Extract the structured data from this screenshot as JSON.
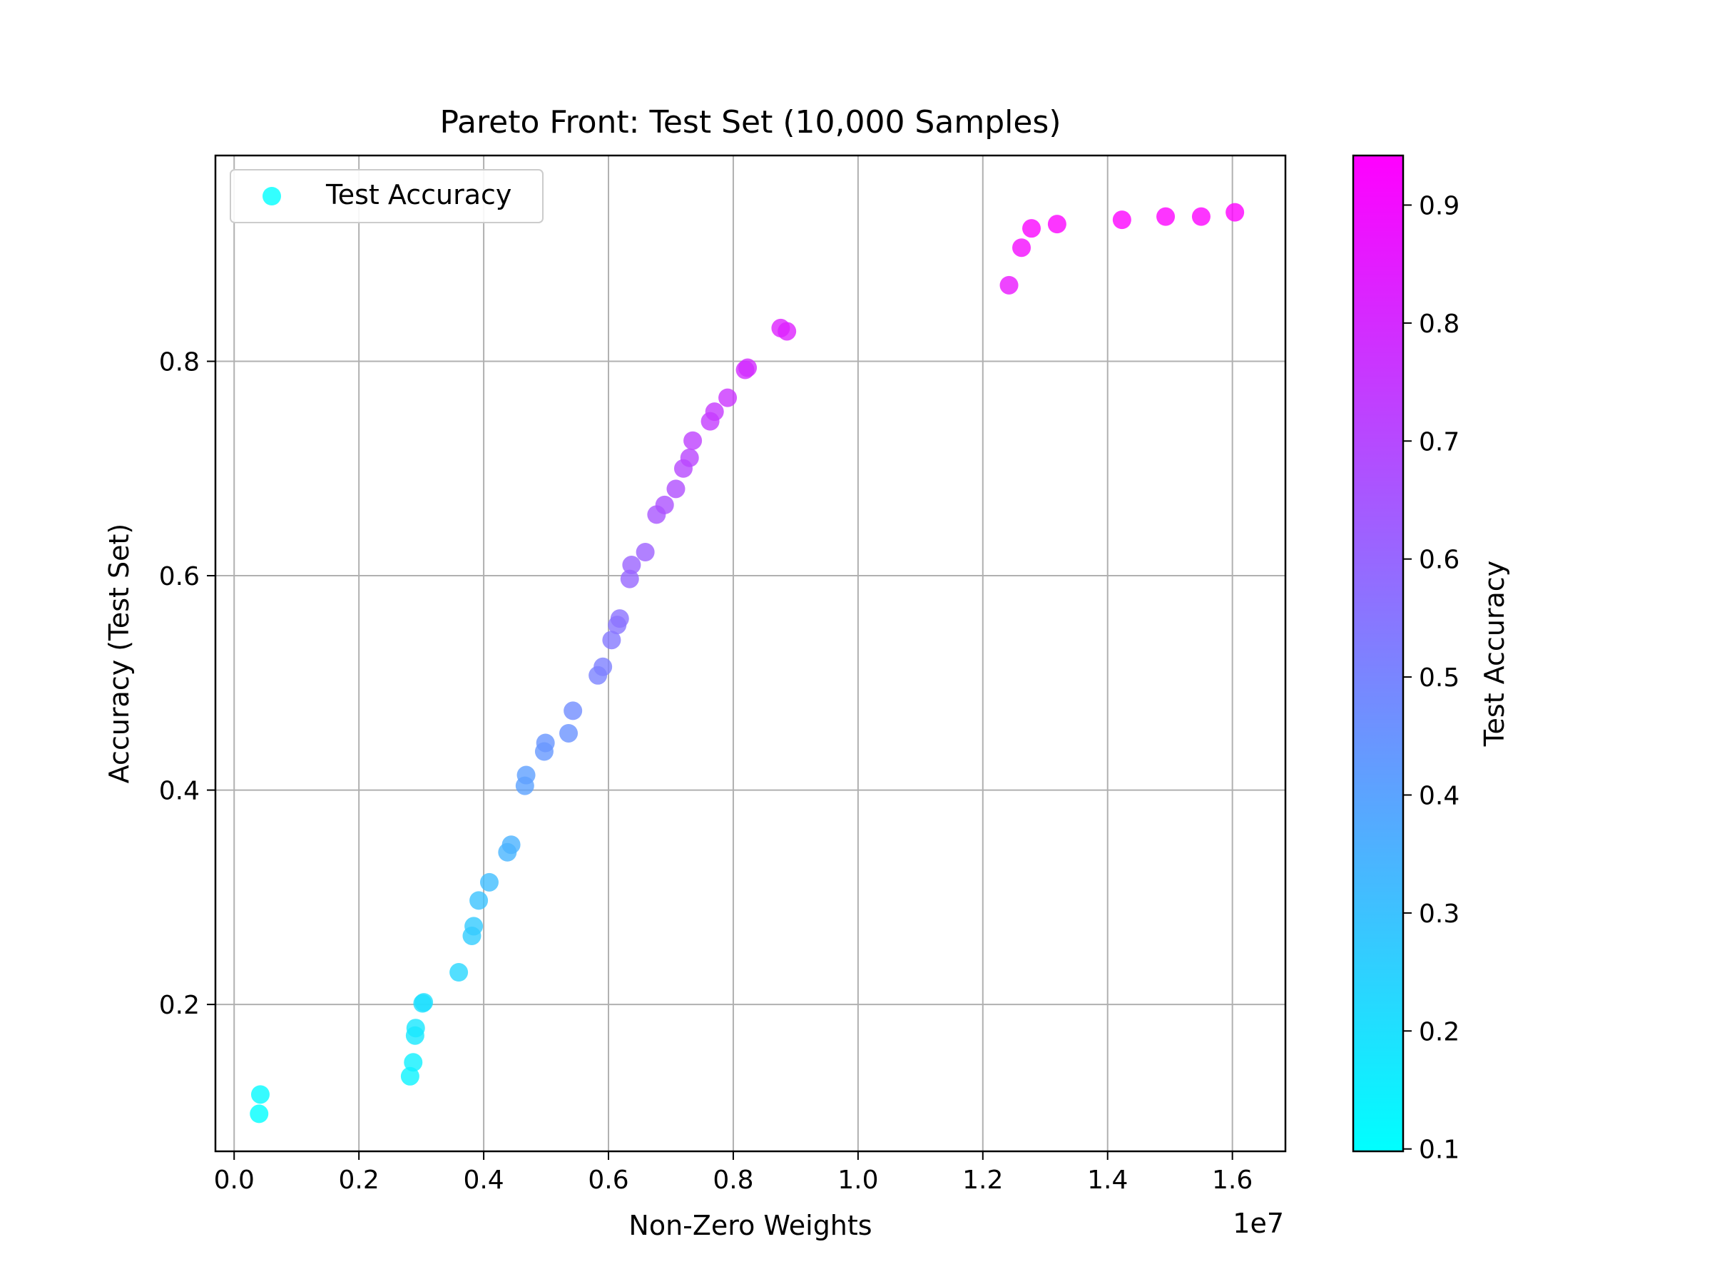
{
  "chart_data": {
    "type": "scatter",
    "title": "Pareto Front: Test Set (10,000 Samples)",
    "xlabel": "Non-Zero Weights",
    "ylabel": "Accuracy (Test Set)",
    "x_offset_label": "1e7",
    "xlim": [
      -0.03,
      1.685
    ],
    "ylim": [
      0.063,
      0.992
    ],
    "x_ticks": [
      {
        "v": 0.0,
        "label": "0.0"
      },
      {
        "v": 0.2,
        "label": "0.2"
      },
      {
        "v": 0.4,
        "label": "0.4"
      },
      {
        "v": 0.6,
        "label": "0.6"
      },
      {
        "v": 0.8,
        "label": "0.8"
      },
      {
        "v": 1.0,
        "label": "1.0"
      },
      {
        "v": 1.2,
        "label": "1.2"
      },
      {
        "v": 1.4,
        "label": "1.4"
      },
      {
        "v": 1.6,
        "label": "1.6"
      }
    ],
    "y_ticks": [
      {
        "v": 0.2,
        "label": "0.2"
      },
      {
        "v": 0.4,
        "label": "0.4"
      },
      {
        "v": 0.6,
        "label": "0.6"
      },
      {
        "v": 0.8,
        "label": "0.8"
      }
    ],
    "grid": true,
    "legend": {
      "location": "upper-left",
      "label": "Test Accuracy"
    },
    "colormap": {
      "name": "cool",
      "start": "#00ffff",
      "end": "#ff00ff",
      "vmin": 0.098,
      "vmax": 0.942
    },
    "colorbar": {
      "label": "Test Accuracy",
      "ticks": [
        {
          "v": 0.1,
          "label": "0.1"
        },
        {
          "v": 0.2,
          "label": "0.2"
        },
        {
          "v": 0.3,
          "label": "0.3"
        },
        {
          "v": 0.4,
          "label": "0.4"
        },
        {
          "v": 0.5,
          "label": "0.5"
        },
        {
          "v": 0.6,
          "label": "0.6"
        },
        {
          "v": 0.7,
          "label": "0.7"
        },
        {
          "v": 0.8,
          "label": "0.8"
        },
        {
          "v": 0.9,
          "label": "0.9"
        }
      ]
    },
    "series": [
      {
        "points": [
          [
            0.04,
            0.098
          ],
          [
            0.042,
            0.116
          ],
          [
            0.282,
            0.133
          ],
          [
            0.287,
            0.146
          ],
          [
            0.29,
            0.171
          ],
          [
            0.291,
            0.178
          ],
          [
            0.302,
            0.201
          ],
          [
            0.304,
            0.202
          ],
          [
            0.36,
            0.23
          ],
          [
            0.381,
            0.264
          ],
          [
            0.384,
            0.273
          ],
          [
            0.392,
            0.297
          ],
          [
            0.409,
            0.314
          ],
          [
            0.438,
            0.342
          ],
          [
            0.444,
            0.349
          ],
          [
            0.466,
            0.404
          ],
          [
            0.468,
            0.414
          ],
          [
            0.497,
            0.436
          ],
          [
            0.499,
            0.444
          ],
          [
            0.536,
            0.453
          ],
          [
            0.543,
            0.474
          ],
          [
            0.583,
            0.507
          ],
          [
            0.591,
            0.515
          ],
          [
            0.605,
            0.54
          ],
          [
            0.614,
            0.554
          ],
          [
            0.618,
            0.56
          ],
          [
            0.634,
            0.597
          ],
          [
            0.637,
            0.61
          ],
          [
            0.659,
            0.622
          ],
          [
            0.677,
            0.657
          ],
          [
            0.69,
            0.666
          ],
          [
            0.708,
            0.681
          ],
          [
            0.72,
            0.7
          ],
          [
            0.73,
            0.71
          ],
          [
            0.735,
            0.726
          ],
          [
            0.763,
            0.744
          ],
          [
            0.77,
            0.753
          ],
          [
            0.791,
            0.766
          ],
          [
            0.819,
            0.792
          ],
          [
            0.823,
            0.794
          ],
          [
            0.876,
            0.831
          ],
          [
            0.886,
            0.828
          ],
          [
            1.242,
            0.871
          ],
          [
            1.262,
            0.906
          ],
          [
            1.278,
            0.924
          ],
          [
            1.319,
            0.928
          ],
          [
            1.423,
            0.932
          ],
          [
            1.493,
            0.935
          ],
          [
            1.55,
            0.935
          ],
          [
            1.604,
            0.939
          ]
        ]
      }
    ]
  }
}
